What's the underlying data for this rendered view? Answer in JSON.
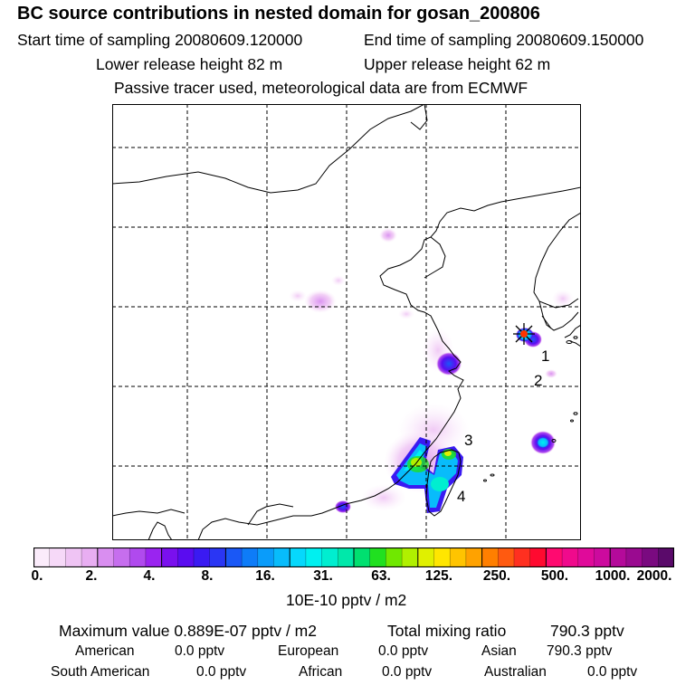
{
  "header": {
    "title": "BC  source contributions in nested domain for gosan_200806",
    "start_time": "Start time of sampling 20080609.120000",
    "end_time": "End time of sampling 20080609.150000",
    "lower_release": "Lower release height   82 m",
    "upper_release": "Upper release height   62 m",
    "tracer_note": "Passive tracer used, meteorological data are from ECMWF"
  },
  "map": {
    "region_labels": [
      "1",
      "2",
      "3",
      "4"
    ],
    "colors": {
      "coast": "#000000",
      "grid": "#000000",
      "marker": "#ff3300"
    }
  },
  "colorbar": {
    "tick_labels": [
      "0.",
      "2.",
      "4.",
      "8.",
      "16.",
      "31.",
      "63.",
      "125.",
      "250.",
      "500.",
      "1000.",
      "2000."
    ],
    "colors": [
      "#fbecfb",
      "#f6d9f8",
      "#efc4f4",
      "#e8aef2",
      "#d98ef0",
      "#c66eee",
      "#b04aee",
      "#9a24f0",
      "#7a10ee",
      "#5a0cf0",
      "#3a1af2",
      "#2a36f4",
      "#1a58f6",
      "#0e7cf8",
      "#0a9cfa",
      "#08bcfb",
      "#06d8fc",
      "#00f0f0",
      "#00eed0",
      "#00e8aa",
      "#00e070",
      "#20e020",
      "#70e800",
      "#b0f000",
      "#e0f000",
      "#ffe600",
      "#ffc400",
      "#ffa200",
      "#ff7f00",
      "#ff5a10",
      "#ff3020",
      "#ff0a30",
      "#ff0a70",
      "#f00a8c",
      "#e00a9a",
      "#cc0a9e",
      "#b40a9a",
      "#9a0a90",
      "#7a0a80",
      "#5a0a6a"
    ],
    "units": "10E-10 pptv / m2"
  },
  "stats": {
    "maximum_label": "Maximum value  0.889E-07 pptv / m2",
    "total_label": "Total mixing ratio",
    "total_value": "790.3 pptv",
    "american_label": "American",
    "american_value": "0.0 pptv",
    "european_label": "European",
    "european_value": "0.0 pptv",
    "asian_label": "Asian",
    "asian_value": "790.3 pptv",
    "south_american_label": "South American",
    "south_american_value": "0.0 pptv",
    "african_label": "African",
    "african_value": "0.0 pptv",
    "australian_label": "Australian",
    "australian_value": "0.0 pptv"
  }
}
